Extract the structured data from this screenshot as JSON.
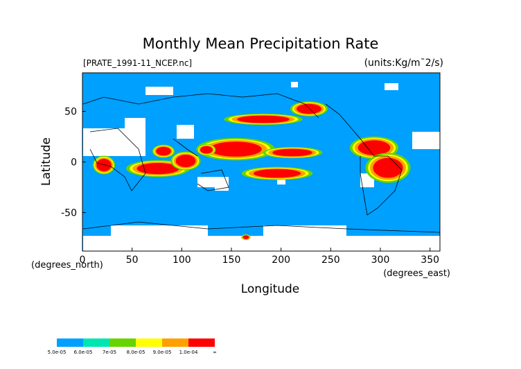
{
  "chart_data": {
    "type": "map",
    "title": "Monthly Mean Precipitation Rate",
    "subtitle": "[PRATE_1991-11_NCEP.nc]",
    "units": "(units:Kg/m¯2/s)",
    "x_label": "Longitude",
    "y_label": "Latitude",
    "x_unit": "(degrees_east)",
    "y_unit": "(degrees_north)",
    "xlim": [
      0,
      360
    ],
    "ylim": [
      -88,
      88
    ],
    "xticks": [
      0,
      50,
      100,
      150,
      200,
      250,
      300,
      350
    ],
    "yticks": [
      -50,
      0,
      50
    ],
    "colorbar": {
      "colors": [
        "#00a0ff",
        "#00e6b0",
        "#66d400",
        "#ffff00",
        "#ffa000",
        "#ff0000"
      ],
      "levels": [
        {
          "value": 5e-05,
          "label": "5.0e-05"
        },
        {
          "value": 6e-05,
          "label": "6.0e-05"
        },
        {
          "value": 7e-05,
          "label": "7e-05"
        },
        {
          "value": 8e-05,
          "label": "8.0e-05"
        },
        {
          "value": 9e-05,
          "label": "9.0e-05"
        },
        {
          "value": 0.0001,
          "label": "1.0e-04"
        },
        {
          "value": null,
          "label": "∞"
        }
      ]
    }
  }
}
